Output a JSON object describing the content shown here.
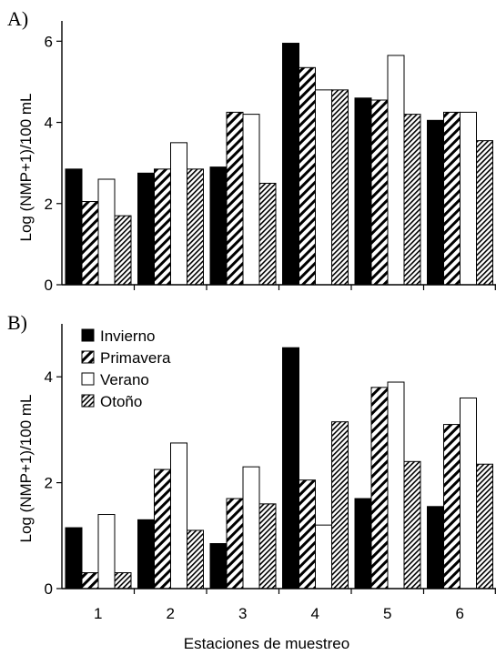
{
  "chart_data": [
    {
      "type": "bar",
      "panel_label": "A)",
      "ylabel": "Log (NMP+1)/100 mL",
      "xlabel": "",
      "ylim": [
        0,
        6.5
      ],
      "yticks": [
        "0",
        "2",
        "4",
        "6"
      ],
      "categories": [
        "1",
        "2",
        "3",
        "4",
        "5",
        "6"
      ],
      "series": [
        {
          "name": "Invierno",
          "values": [
            2.85,
            2.75,
            2.9,
            5.95,
            4.6,
            4.05
          ]
        },
        {
          "name": "Primavera",
          "values": [
            2.05,
            2.85,
            4.25,
            5.35,
            4.55,
            4.25
          ]
        },
        {
          "name": "Verano",
          "values": [
            2.6,
            3.5,
            4.2,
            4.8,
            5.65,
            4.25
          ]
        },
        {
          "name": "Otoño",
          "values": [
            1.7,
            2.85,
            2.5,
            4.8,
            4.2,
            3.55
          ]
        }
      ],
      "grid": false,
      "legend": "none"
    },
    {
      "type": "bar",
      "panel_label": "B)",
      "ylabel": "Log (NMP+1)/100 mL",
      "xlabel": "Estaciones de muestreo",
      "ylim": [
        0,
        5
      ],
      "yticks": [
        "0",
        "2",
        "4"
      ],
      "categories": [
        "1",
        "2",
        "3",
        "4",
        "5",
        "6"
      ],
      "series": [
        {
          "name": "Invierno",
          "values": [
            1.15,
            1.3,
            0.85,
            4.55,
            1.7,
            1.55
          ]
        },
        {
          "name": "Primavera",
          "values": [
            0.3,
            2.25,
            1.7,
            2.05,
            3.8,
            3.1
          ]
        },
        {
          "name": "Verano",
          "values": [
            1.4,
            2.75,
            2.3,
            1.2,
            3.9,
            3.6
          ]
        },
        {
          "name": "Otoño",
          "values": [
            0.3,
            1.1,
            1.6,
            3.15,
            2.4,
            2.35
          ]
        }
      ],
      "grid": false,
      "legend": "upper-left"
    }
  ],
  "legend": {
    "items": [
      {
        "label": "Invierno",
        "style": "solid"
      },
      {
        "label": "Primavera",
        "style": "hatch-sparse"
      },
      {
        "label": "Verano",
        "style": "open"
      },
      {
        "label": "Otoño",
        "style": "hatch-dense"
      }
    ]
  },
  "colors": {
    "ink": "#000000",
    "background": "#ffffff"
  }
}
